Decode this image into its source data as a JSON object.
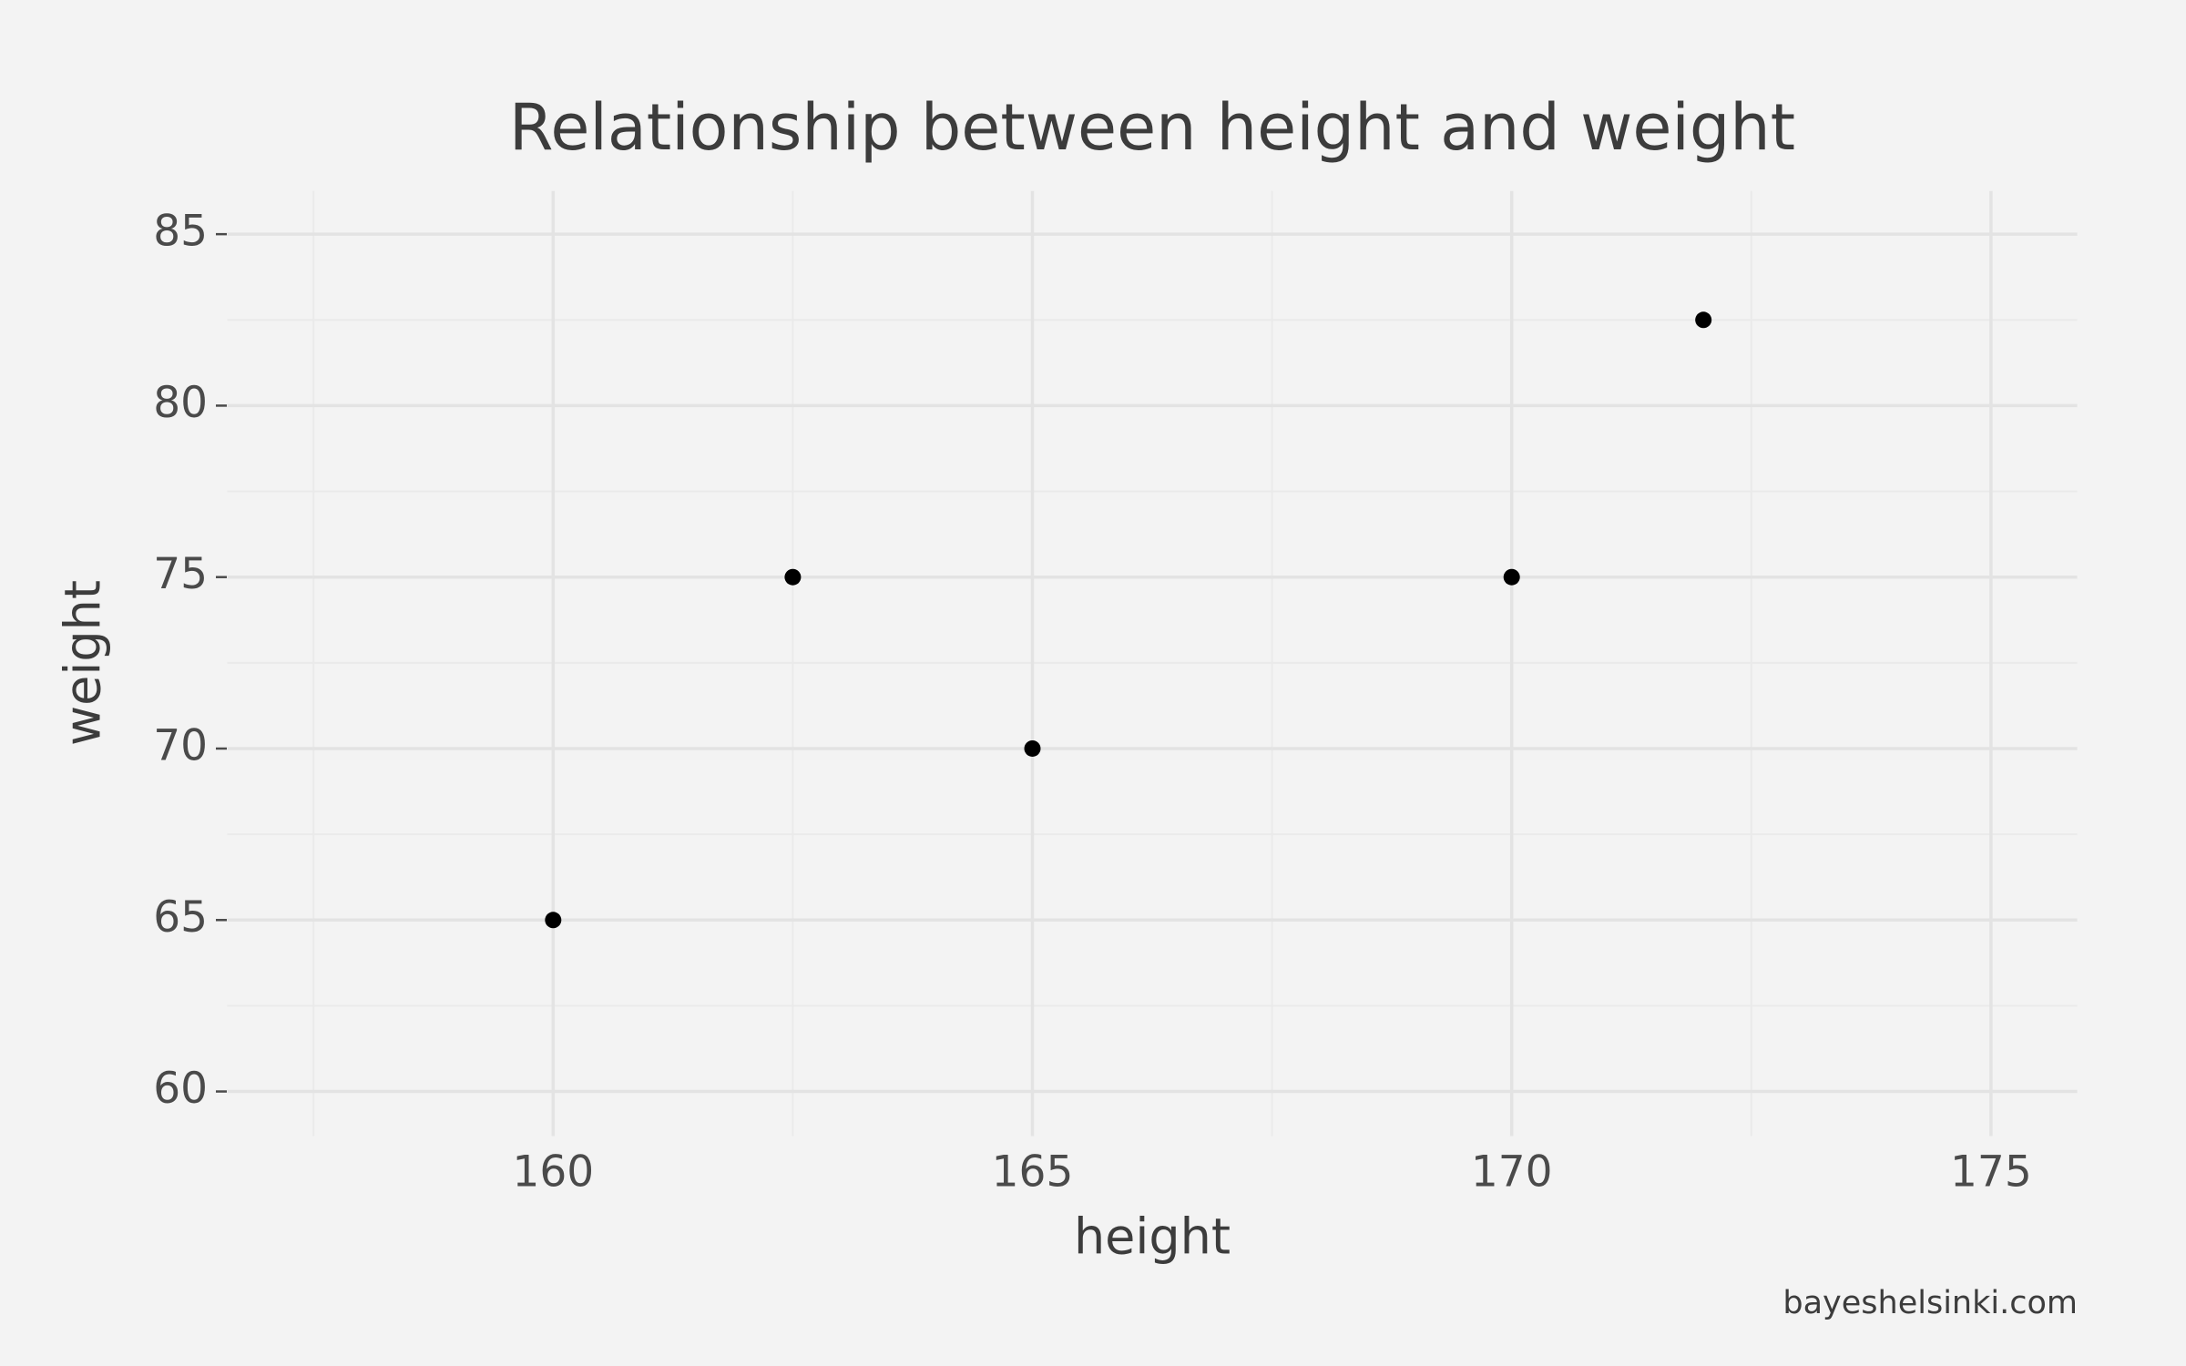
{
  "chart_data": {
    "type": "scatter",
    "title": "Relationship between height and weight",
    "xlabel": "height",
    "ylabel": "weight",
    "caption": "bayeshelsinki.com",
    "x": [
      160,
      162.5,
      165,
      170,
      172
    ],
    "values": [
      65,
      75,
      70,
      75,
      82.5
    ],
    "color": "#000000",
    "xlim": [
      156.6,
      175.9
    ],
    "xticks": [
      160,
      165,
      170,
      175
    ],
    "xminor": [
      157.5,
      162.5,
      167.5,
      172.5
    ],
    "ylim": [
      58.7,
      86.26
    ],
    "yticks": [
      60,
      65,
      70,
      75,
      80,
      85
    ],
    "yminor": [
      62.5,
      67.5,
      72.5,
      77.5,
      82.5
    ],
    "grid": true
  }
}
